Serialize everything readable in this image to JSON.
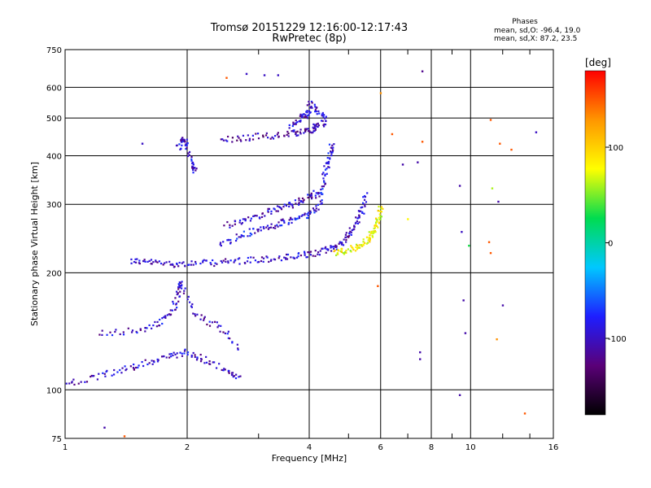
{
  "header": {
    "title_line1": "Tromsø 20151229 12:16:00-12:17:43",
    "title_line2": "RwPretec (8p)"
  },
  "stats": {
    "heading": "Phases",
    "line_o": "mean, sd,O: -96.4, 19.0",
    "line_x": "mean, sd,X:  87.2, 23.5"
  },
  "colorbar": {
    "unit": "[deg]",
    "ticks": [
      "100",
      "0",
      "-100"
    ],
    "tick_values": [
      100,
      0,
      -100
    ],
    "range": [
      -180,
      180
    ],
    "palette": [
      "#000000",
      "#5a0078",
      "#1e1eff",
      "#00c8ff",
      "#00dc50",
      "#ffff00",
      "#ff9600",
      "#ff0000"
    ]
  },
  "chart_data": {
    "type": "scatter",
    "title": "Tromsø 20151229 12:16:00-12:17:43",
    "subtitle": "RwPretec (8p)",
    "xlabel": "Frequency [MHz]",
    "ylabel": "Stationary phase Virtual Height [km]",
    "x_scale": "log",
    "y_scale": "log",
    "xlim": [
      1,
      16
    ],
    "ylim": [
      75,
      750
    ],
    "x_ticks": [
      "1",
      "2",
      "4",
      "6",
      "8",
      "10",
      "16"
    ],
    "x_tick_values": [
      1,
      2,
      4,
      6,
      8,
      10,
      16
    ],
    "x_minor_ticks": [
      3,
      5,
      7,
      9,
      12,
      14
    ],
    "y_ticks": [
      "75",
      "100",
      "200",
      "300",
      "400",
      "500",
      "600",
      "750"
    ],
    "y_tick_values": [
      75,
      100,
      200,
      300,
      400,
      500,
      600,
      750
    ],
    "grid": true,
    "color_variable": "phase [deg]",
    "traces": [
      {
        "name": "",
        "color_phase": -100,
        "points": [
          [
            1.45,
            215
          ],
          [
            1.6,
            213
          ],
          [
            1.8,
            211
          ],
          [
            2.0,
            211
          ],
          [
            2.3,
            212
          ],
          [
            2.6,
            214
          ],
          [
            3.0,
            216
          ],
          [
            3.4,
            218
          ],
          [
            3.8,
            221
          ],
          [
            4.2,
            225
          ],
          [
            4.5,
            231
          ],
          [
            4.8,
            238
          ],
          [
            5.0,
            250
          ],
          [
            5.2,
            268
          ],
          [
            5.4,
            290
          ],
          [
            5.5,
            320
          ]
        ]
      },
      {
        "name": "",
        "color_phase": -90,
        "points": [
          [
            2.4,
            235
          ],
          [
            2.7,
            248
          ],
          [
            3.0,
            258
          ],
          [
            3.3,
            265
          ],
          [
            3.6,
            272
          ],
          [
            3.9,
            280
          ],
          [
            4.2,
            292
          ],
          [
            4.3,
            330
          ],
          [
            4.4,
            370
          ],
          [
            4.5,
            400
          ],
          [
            4.55,
            430
          ]
        ]
      },
      {
        "name": "",
        "color_phase": -100,
        "points": [
          [
            2.5,
            265
          ],
          [
            2.8,
            275
          ],
          [
            3.1,
            284
          ],
          [
            3.4,
            293
          ],
          [
            3.7,
            302
          ],
          [
            4.0,
            312
          ],
          [
            4.2,
            322
          ]
        ]
      },
      {
        "name": "",
        "color_phase": 80,
        "points": [
          [
            4.6,
            225
          ],
          [
            4.9,
            228
          ],
          [
            5.2,
            232
          ],
          [
            5.5,
            240
          ],
          [
            5.7,
            250
          ],
          [
            5.85,
            262
          ],
          [
            5.95,
            278
          ],
          [
            6.0,
            295
          ]
        ]
      },
      {
        "name": "",
        "color_phase": -110,
        "points": [
          [
            2.4,
            440
          ],
          [
            2.8,
            445
          ],
          [
            3.2,
            450
          ],
          [
            3.6,
            455
          ],
          [
            3.9,
            462
          ],
          [
            4.1,
            470
          ],
          [
            4.2,
            480
          ]
        ]
      },
      {
        "name": "",
        "color_phase": -95,
        "points": [
          [
            1.9,
            420
          ],
          [
            1.95,
            440
          ],
          [
            2.0,
            430
          ],
          [
            2.05,
            380
          ],
          [
            2.1,
            360
          ]
        ]
      },
      {
        "name": "",
        "color_phase": -100,
        "points": [
          [
            3.6,
            475
          ],
          [
            3.8,
            500
          ],
          [
            3.95,
            510
          ],
          [
            4.05,
            545
          ],
          [
            4.3,
            510
          ],
          [
            4.4,
            480
          ]
        ]
      },
      {
        "name": "",
        "color_phase": -100,
        "points": [
          [
            1.0,
            103
          ],
          [
            1.2,
            108
          ],
          [
            1.4,
            113
          ],
          [
            1.6,
            118
          ],
          [
            1.8,
            122
          ],
          [
            2.0,
            125
          ],
          [
            2.2,
            120
          ],
          [
            2.5,
            112
          ],
          [
            2.7,
            108
          ]
        ]
      },
      {
        "name": "",
        "color_phase": -100,
        "points": [
          [
            1.2,
            140
          ],
          [
            1.5,
            142
          ],
          [
            1.7,
            148
          ],
          [
            1.85,
            160
          ],
          [
            1.9,
            180
          ],
          [
            1.92,
            190
          ],
          [
            2.1,
            155
          ],
          [
            2.4,
            145
          ],
          [
            2.7,
            128
          ]
        ]
      }
    ],
    "isolated_points": [
      {
        "freq": 2.8,
        "height": 650,
        "phase": -100
      },
      {
        "freq": 3.1,
        "height": 645,
        "phase": -100
      },
      {
        "freq": 3.35,
        "height": 645,
        "phase": -100
      },
      {
        "freq": 2.5,
        "height": 635,
        "phase": 150
      },
      {
        "freq": 7.6,
        "height": 660,
        "phase": -120
      },
      {
        "freq": 6.0,
        "height": 580,
        "phase": 130
      },
      {
        "freq": 11.2,
        "height": 495,
        "phase": 150
      },
      {
        "freq": 6.4,
        "height": 455,
        "phase": 150
      },
      {
        "freq": 7.6,
        "height": 435,
        "phase": 150
      },
      {
        "freq": 11.8,
        "height": 430,
        "phase": 150
      },
      {
        "freq": 12.6,
        "height": 415,
        "phase": 150
      },
      {
        "freq": 6.8,
        "height": 380,
        "phase": -110
      },
      {
        "freq": 7.4,
        "height": 385,
        "phase": -110
      },
      {
        "freq": 9.4,
        "height": 335,
        "phase": -110
      },
      {
        "freq": 11.3,
        "height": 330,
        "phase": 60
      },
      {
        "freq": 11.7,
        "height": 305,
        "phase": -110
      },
      {
        "freq": 7.0,
        "height": 275,
        "phase": 80
      },
      {
        "freq": 9.5,
        "height": 255,
        "phase": -100
      },
      {
        "freq": 9.9,
        "height": 235,
        "phase": 30
      },
      {
        "freq": 11.1,
        "height": 240,
        "phase": 150
      },
      {
        "freq": 11.2,
        "height": 225,
        "phase": 150
      },
      {
        "freq": 5.9,
        "height": 185,
        "phase": 150
      },
      {
        "freq": 9.6,
        "height": 170,
        "phase": -110
      },
      {
        "freq": 12.0,
        "height": 165,
        "phase": -110
      },
      {
        "freq": 9.7,
        "height": 140,
        "phase": -110
      },
      {
        "freq": 11.6,
        "height": 135,
        "phase": 130
      },
      {
        "freq": 7.5,
        "height": 125,
        "phase": -110
      },
      {
        "freq": 7.5,
        "height": 120,
        "phase": -110
      },
      {
        "freq": 9.4,
        "height": 97,
        "phase": -110
      },
      {
        "freq": 13.6,
        "height": 87,
        "phase": 150
      },
      {
        "freq": 1.25,
        "height": 80,
        "phase": -110
      },
      {
        "freq": 1.4,
        "height": 76,
        "phase": 150
      },
      {
        "freq": 14.5,
        "height": 460,
        "phase": -100
      },
      {
        "freq": 1.55,
        "height": 430,
        "phase": -100
      }
    ]
  }
}
